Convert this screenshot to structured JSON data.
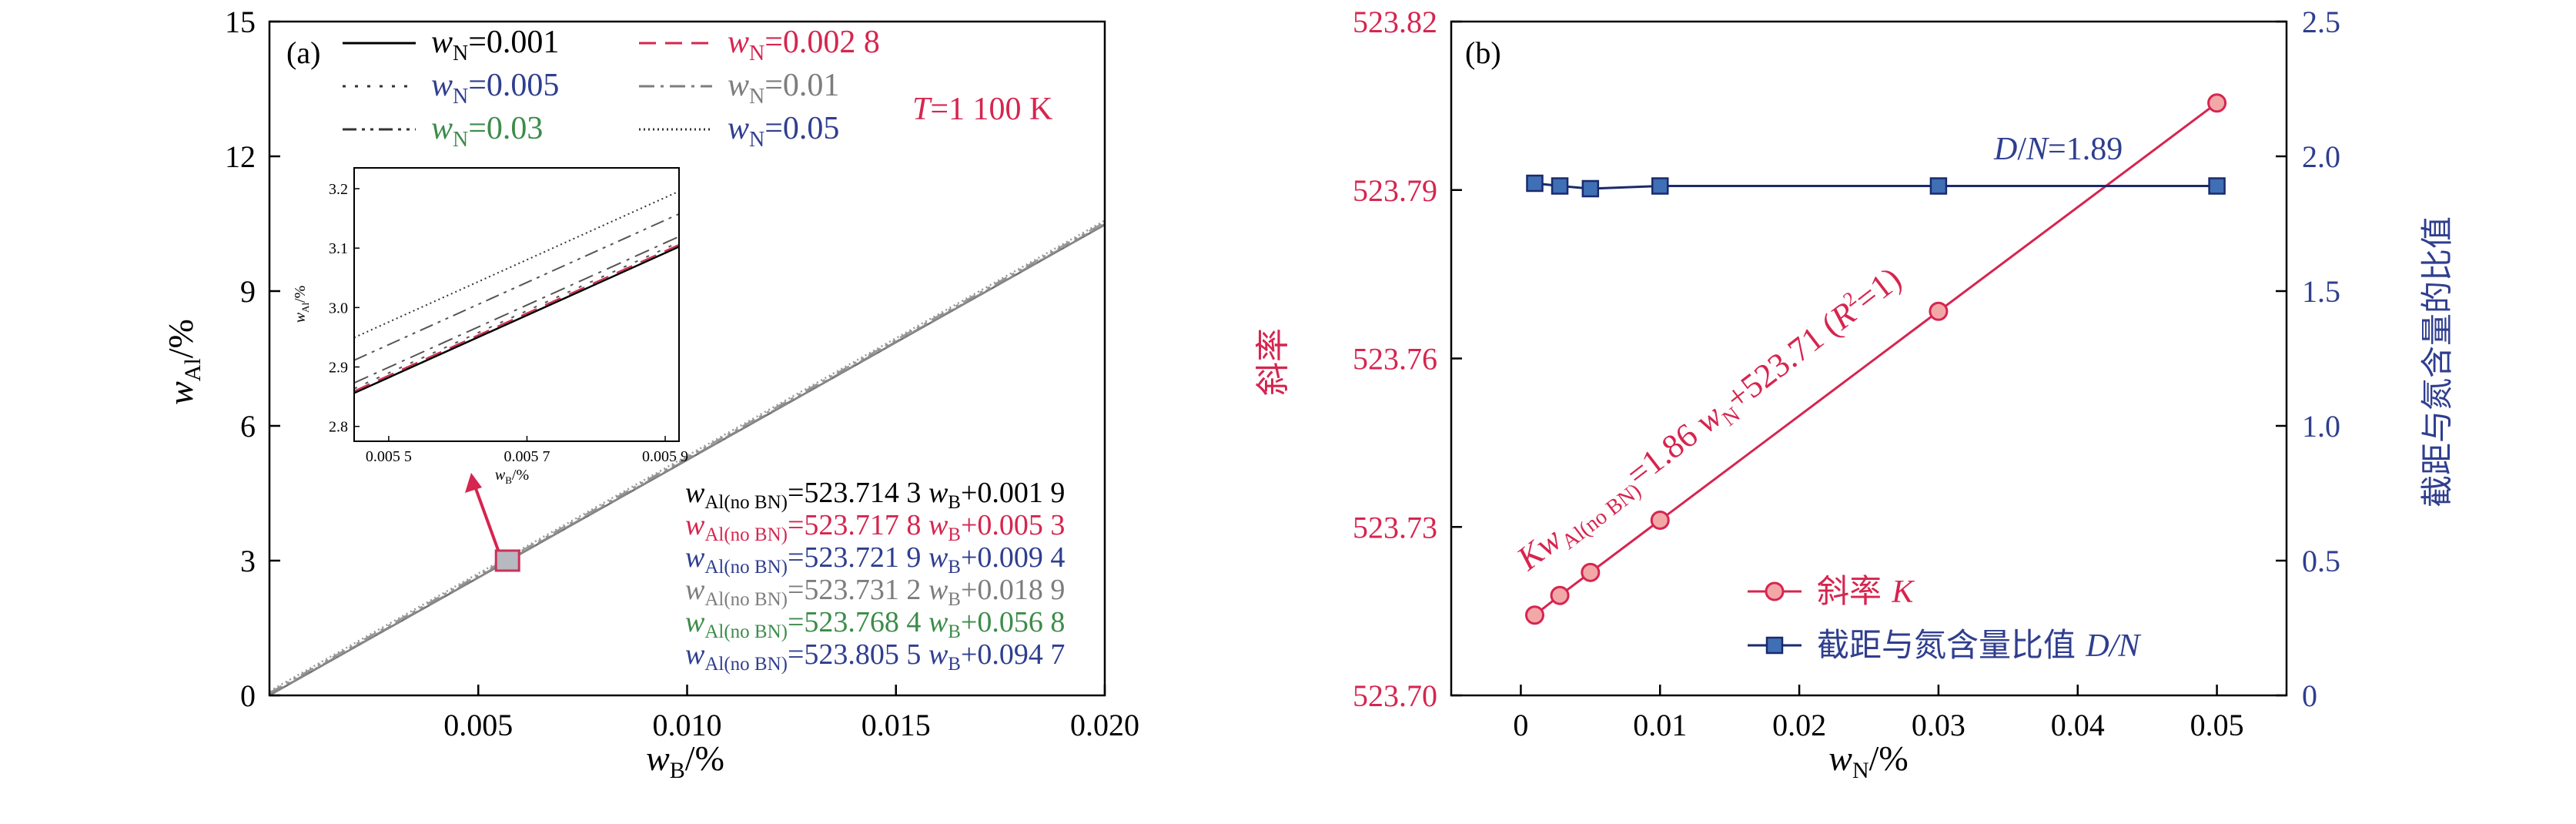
{
  "colors": {
    "axis": "#000000",
    "red": "#d6254f",
    "blue": "#2f3e8f",
    "navy": "#1a2a6c",
    "marker_blue": "#3f6fb5",
    "green": "#3c8c4a",
    "gray": "#7d7d7d",
    "marker_fill_red": "#f3a8a8",
    "box_fill": "#b8b8c0",
    "box_edge": "#c8325a"
  },
  "chart_data": [
    {
      "type": "line",
      "panel_label": "(a)",
      "xlabel_sym": "w",
      "xlabel_sub": "B",
      "xlabel_unit": "/%",
      "ylabel_sym": "w",
      "ylabel_sub": "Al",
      "ylabel_unit": "/%",
      "xlim": [
        0,
        0.02
      ],
      "ylim": [
        0,
        15
      ],
      "x_ticks": [
        0.005,
        0.01,
        0.015,
        0.02
      ],
      "x_tick_labels": [
        "0.005",
        "0.010",
        "0.015",
        "0.020"
      ],
      "y_ticks": [
        0,
        3,
        6,
        9,
        12,
        15
      ],
      "y_tick_labels": [
        "0",
        "3",
        "6",
        "9",
        "12",
        "15"
      ],
      "temp_label": {
        "sym": "T",
        "text": "=1 100 K"
      },
      "legend": [
        {
          "sym": "w",
          "sub": "N",
          "value": "=0.001",
          "color": "#000000",
          "dash": "solid"
        },
        {
          "sym": "w",
          "sub": "N",
          "value": "=0.002 8",
          "color": "#d6254f",
          "dash": "dash"
        },
        {
          "sym": "w",
          "sub": "N",
          "value": "=0.005",
          "color": "#2f3e8f",
          "dash": "dot"
        },
        {
          "sym": "w",
          "sub": "N",
          "value": "=0.01",
          "color": "#7d7d7d",
          "dash": "dashdot"
        },
        {
          "sym": "w",
          "sub": "N",
          "value": "=0.03",
          "color": "#3c8c4a",
          "dash": "dashdotdot"
        },
        {
          "sym": "w",
          "sub": "N",
          "value": "=0.05",
          "color": "#2f3e8f",
          "dash": "fine"
        }
      ],
      "series": [
        {
          "wN": 0.001,
          "slope": 523.7143,
          "intercept": 0.0019
        },
        {
          "wN": 0.0028,
          "slope": 523.7178,
          "intercept": 0.0053
        },
        {
          "wN": 0.005,
          "slope": 523.7219,
          "intercept": 0.0094
        },
        {
          "wN": 0.01,
          "slope": 523.7312,
          "intercept": 0.0189
        },
        {
          "wN": 0.03,
          "slope": 523.7684,
          "intercept": 0.0568
        },
        {
          "wN": 0.05,
          "slope": 523.8055,
          "intercept": 0.0947
        }
      ],
      "equations": [
        {
          "prefix": "w",
          "sub": "Al(no BN)",
          "slope": "=523.714 3",
          "mid": " w",
          "sub2": "B",
          "icpt": "+0.001 9",
          "color": "#000000"
        },
        {
          "prefix": "w",
          "sub": "Al(no BN)",
          "slope": "=523.717 8",
          "mid": " w",
          "sub2": "B",
          "icpt": "+0.005 3",
          "color": "#d6254f"
        },
        {
          "prefix": "w",
          "sub": "Al(no BN)",
          "slope": "=523.721 9",
          "mid": " w",
          "sub2": "B",
          "icpt": "+0.009 4",
          "color": "#2f3e8f"
        },
        {
          "prefix": "w",
          "sub": "Al(no BN)",
          "slope": "=523.731 2",
          "mid": " w",
          "sub2": "B",
          "icpt": "+0.018 9",
          "color": "#7d7d7d"
        },
        {
          "prefix": "w",
          "sub": "Al(no BN)",
          "slope": "=523.768 4",
          "mid": " w",
          "sub2": "B",
          "icpt": "+0.056 8",
          "color": "#3c8c4a"
        },
        {
          "prefix": "w",
          "sub": "Al(no BN)",
          "slope": "=523.805 5",
          "mid": " w",
          "sub2": "B",
          "icpt": "+0.094 7",
          "color": "#2f3e8f"
        }
      ],
      "zoom_point": {
        "x": 0.0057,
        "y": 3.0
      },
      "inset": {
        "xlim": [
          0.00545,
          0.00592
        ],
        "ylim": [
          2.775,
          3.235
        ],
        "x_ticks": [
          0.0055,
          0.0057,
          0.0059
        ],
        "x_tick_labels": [
          "0.005 5",
          "0.005 7",
          "0.005 9"
        ],
        "y_ticks": [
          2.8,
          2.9,
          3.0,
          3.1,
          3.2
        ],
        "y_tick_labels": [
          "2.8",
          "2.9",
          "3.0",
          "3.1",
          "3.2"
        ],
        "xlabel_sym": "w",
        "xlabel_sub": "B",
        "xlabel_unit": "/%",
        "ylabel_sym": "w",
        "ylabel_sub": "Al",
        "ylabel_unit": "/%"
      }
    },
    {
      "type": "line",
      "panel_label": "(b)",
      "xlabel_sym": "w",
      "xlabel_sub": "N",
      "xlabel_unit": "/%",
      "ylabel_left": "斜率",
      "ylabel_right": "截距与氮含量的比值",
      "xlim": [
        -0.005,
        0.055
      ],
      "ylim_left": [
        523.7,
        523.82
      ],
      "ylim_right": [
        0,
        2.5
      ],
      "x_ticks": [
        0,
        0.01,
        0.02,
        0.03,
        0.04,
        0.05
      ],
      "x_tick_labels": [
        "0",
        "0.01",
        "0.02",
        "0.03",
        "0.04",
        "0.05"
      ],
      "y_ticks_left": [
        523.7,
        523.73,
        523.76,
        523.79,
        523.82
      ],
      "y_tick_labels_left": [
        "523.70",
        "523.73",
        "523.76",
        "523.79",
        "523.82"
      ],
      "y_ticks_right": [
        0,
        0.5,
        1.0,
        1.5,
        2.0,
        2.5
      ],
      "y_tick_labels_right": [
        "0",
        "0.5",
        "1.0",
        "1.5",
        "2.0",
        "2.5"
      ],
      "series": [
        {
          "name": "斜率 K",
          "axis": "left",
          "x": [
            0.001,
            0.0028,
            0.005,
            0.01,
            0.03,
            0.05
          ],
          "y": [
            523.7143,
            523.7178,
            523.7219,
            523.7312,
            523.7684,
            523.8055
          ]
        },
        {
          "name": "截距与氮含量比值 D/N",
          "axis": "right",
          "x": [
            0.001,
            0.0028,
            0.005,
            0.01,
            0.03,
            0.05
          ],
          "y": [
            1.9,
            1.89,
            1.88,
            1.89,
            1.89,
            1.89
          ]
        }
      ],
      "fit_label": {
        "k": "K",
        "w1": "w",
        "sub1": "Al(no BN)",
        "eq": "=1.86 ",
        "w2": "w",
        "sub2": "N",
        "rest": "+523.71 (",
        "r": "R",
        "sup": "2",
        "end": "=1)"
      },
      "dn_label": {
        "sym1": "D",
        "slash": "/",
        "sym2": "N",
        "value": "=1.89"
      },
      "legend": [
        {
          "cn": "斜率 ",
          "it": "K",
          "tail": ""
        },
        {
          "cn": "截距与氮含量比值 ",
          "it": "D",
          "tail": "/N"
        }
      ]
    }
  ]
}
